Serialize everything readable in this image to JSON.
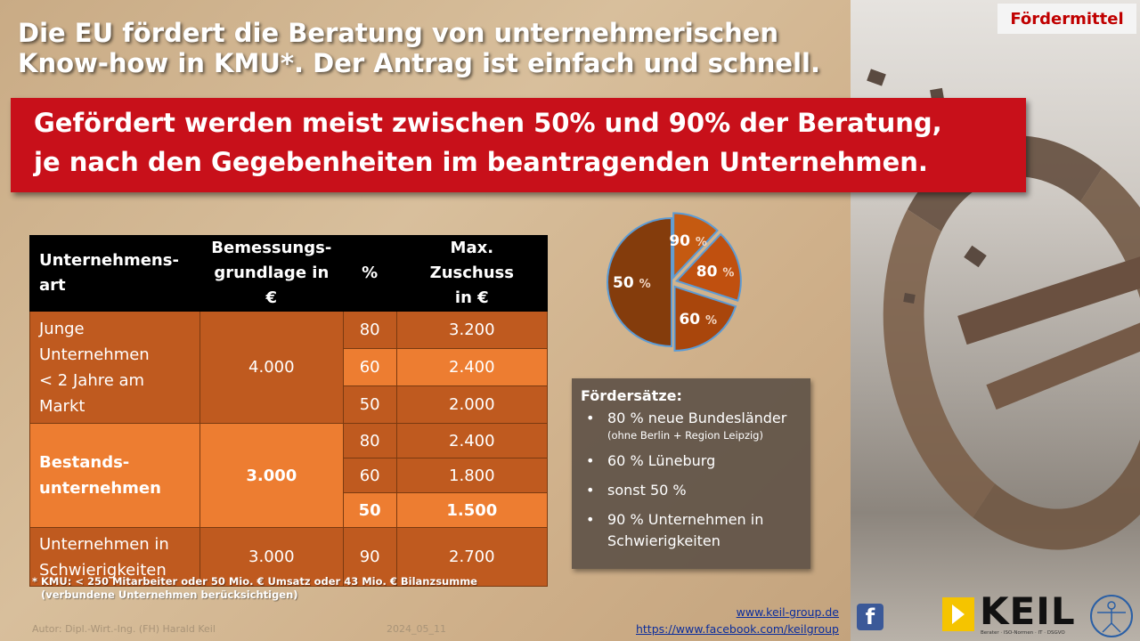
{
  "badge": "Fördermittel",
  "headline": {
    "line1": "Die EU fördert die Beratung von unternehmerischen",
    "line2": "Know-how in KMU*. Der Antrag ist einfach und schnell."
  },
  "banner": {
    "line1": "Gefördert werden meist zwischen 50% und 90% der Beratung,",
    "line2": "je nach den Gegebenheiten im beantragenden Unternehmen."
  },
  "table": {
    "headers": {
      "type": [
        "Unternehmens-",
        "art"
      ],
      "basis": [
        "Bemessungs-",
        "grundlage in €"
      ],
      "percent": "%",
      "max": [
        "Max. Zuschuss",
        "in €"
      ]
    },
    "groups": [
      {
        "label": [
          "Junge",
          "Unternehmen",
          "< 2 Jahre am",
          "Markt"
        ],
        "basis": "4.000",
        "rows": [
          {
            "percent": "80",
            "amount": "3.200"
          },
          {
            "percent": "60",
            "amount": "2.400"
          },
          {
            "percent": "50",
            "amount": "2.000"
          }
        ]
      },
      {
        "label": [
          "Bestands-",
          "unternehmen"
        ],
        "basis": "3.000",
        "rows": [
          {
            "percent": "80",
            "amount": "2.400"
          },
          {
            "percent": "60",
            "amount": "1.800"
          },
          {
            "percent": "50",
            "amount": "1.500"
          }
        ]
      },
      {
        "label": [
          "Unternehmen in",
          "Schwierigkeiten"
        ],
        "basis": "3.000",
        "rows": [
          {
            "percent": "90",
            "amount": "2.700"
          }
        ]
      }
    ]
  },
  "footnote": {
    "line1": "* KMU: < 250 Mitarbeiter oder 50 Mio. € Umsatz oder 43 Mio. € Bilanzsumme",
    "line2": "(verbundene Unternehmen berücksichtigen)"
  },
  "chart_data": {
    "type": "pie",
    "slices": [
      {
        "label": "50",
        "value": 50,
        "color": "#843c0c"
      },
      {
        "label": "90",
        "value": 12,
        "color": "#c55a11"
      },
      {
        "label": "80",
        "value": 18,
        "color": "#c0500f"
      },
      {
        "label": "60",
        "value": 20,
        "color": "#a9460c"
      }
    ],
    "unit": "%",
    "title": "",
    "legend": "none"
  },
  "rates": {
    "title": "Fördersätze:",
    "items": [
      {
        "text": "80 % neue Bundesländer",
        "sub": "(ohne Berlin + Region Leipzig)"
      },
      {
        "text": "60 % Lüneburg",
        "sub": ""
      },
      {
        "text": "sonst 50 %",
        "sub": ""
      },
      {
        "text": "90 % Unternehmen in Schwierigkeiten",
        "sub": ""
      }
    ]
  },
  "meta": {
    "author": "Autor: Dipl.-Wirt.-Ing. (FH) Harald Keil",
    "date": "2024_05_11"
  },
  "links": {
    "website": "www.keil-group.de",
    "facebook": "https://www.facebook.com/keilgroup"
  },
  "logo": {
    "name": "KEIL",
    "tagline": "Berater · ISO-Normen · IT · DSGVO"
  },
  "colors": {
    "banner": "#c8101a",
    "table_dark": "#bf5a1f",
    "table_light": "#ed7d31",
    "header": "#000000",
    "logo_accent": "#f5c400"
  },
  "icons": [
    "facebook-icon",
    "logo-arrow-icon",
    "vitruvian-icon"
  ]
}
